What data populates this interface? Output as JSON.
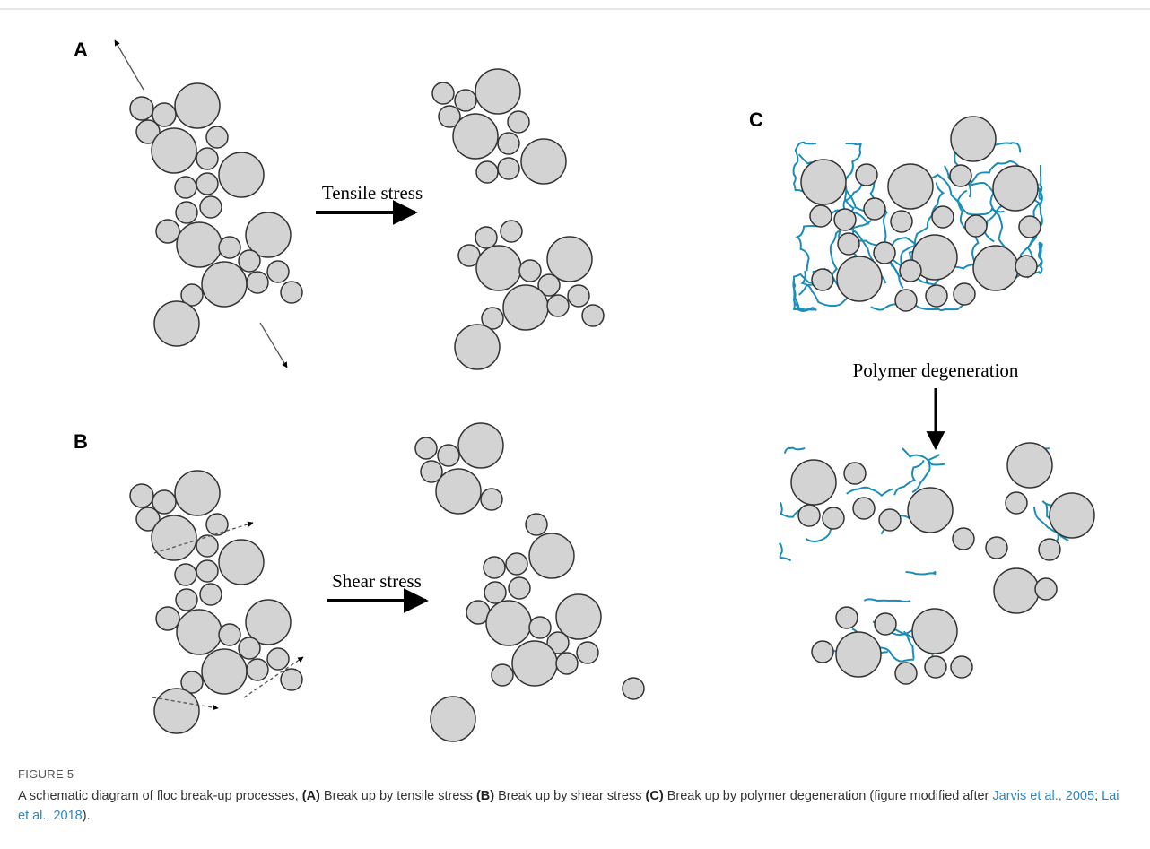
{
  "figure": {
    "panels": [
      {
        "label": "A",
        "process": "Tensile stress"
      },
      {
        "label": "B",
        "process": "Shear stress"
      },
      {
        "label": "C",
        "process": "Polymer degeneration"
      }
    ],
    "caption": {
      "number": "FIGURE 5",
      "intro": "A schematic diagram of floc break-up processes, ",
      "items": [
        {
          "tag": "(A)",
          "text": " Break up by tensile stress "
        },
        {
          "tag": "(B)",
          "text": " Break up by shear stress "
        },
        {
          "tag": "(C)",
          "text": " Break up by polymer degeneration (figure modified after "
        }
      ],
      "refs": [
        "Jarvis et al., 2005",
        "Lai et al., 2018"
      ],
      "separator": "; ",
      "end": ")."
    }
  }
}
